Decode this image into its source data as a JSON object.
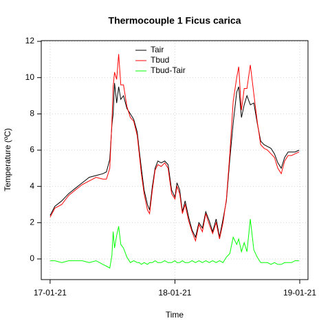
{
  "chart_data": {
    "type": "line",
    "title": "Thermocouple 1 Ficus carica",
    "x_label": "Time",
    "y_label": "Temperature (ºC)",
    "x": [
      0,
      0.038,
      0.093,
      0.148,
      0.203,
      0.258,
      0.313,
      0.368,
      0.423,
      0.451,
      0.478,
      0.495,
      0.505,
      0.516,
      0.533,
      0.549,
      0.566,
      0.588,
      0.615,
      0.643,
      0.67,
      0.698,
      0.714,
      0.731,
      0.753,
      0.78,
      0.797,
      0.819,
      0.841,
      0.863,
      0.89,
      0.918,
      0.945,
      0.973,
      1.0,
      1.016,
      1.038,
      1.06,
      1.082,
      1.11,
      1.137,
      1.165,
      1.192,
      1.22,
      1.247,
      1.275,
      1.302,
      1.33,
      1.357,
      1.385,
      1.412,
      1.44,
      1.467,
      1.495,
      1.511,
      1.533,
      1.555,
      1.577,
      1.604,
      1.632,
      1.659,
      1.687,
      1.714,
      1.742,
      1.769,
      1.797,
      1.824,
      1.852,
      1.879,
      1.907,
      1.934,
      1.962,
      1.995
    ],
    "series": [
      {
        "name": "Tair",
        "color": "#000000",
        "values": [
          2.4,
          2.9,
          3.2,
          3.6,
          3.9,
          4.2,
          4.5,
          4.6,
          4.7,
          4.8,
          5.5,
          7.4,
          8.0,
          9.7,
          8.6,
          9.5,
          8.8,
          9.0,
          8.3,
          8.0,
          7.7,
          7.0,
          6.0,
          5.0,
          3.8,
          3.0,
          2.7,
          4.0,
          5.0,
          5.4,
          5.3,
          5.4,
          5.2,
          3.8,
          3.4,
          4.2,
          3.8,
          2.6,
          3.2,
          2.3,
          1.6,
          1.2,
          2.0,
          1.7,
          2.6,
          2.1,
          1.5,
          2.2,
          1.2,
          2.2,
          3.2,
          5.5,
          7.5,
          9.2,
          9.5,
          7.8,
          8.5,
          9.0,
          8.5,
          8.6,
          7.5,
          6.5,
          6.3,
          6.2,
          6.1,
          5.8,
          5.3,
          5.0,
          5.6,
          5.9,
          5.9,
          5.9,
          6.0
        ]
      },
      {
        "name": "Tbud",
        "color": "#ff0000",
        "values": [
          2.3,
          2.8,
          3.0,
          3.5,
          3.8,
          4.1,
          4.3,
          4.5,
          4.4,
          4.4,
          5.0,
          7.6,
          9.5,
          10.3,
          9.9,
          11.3,
          9.6,
          9.6,
          8.4,
          7.8,
          7.6,
          6.8,
          5.8,
          4.7,
          3.6,
          2.7,
          2.5,
          3.8,
          4.9,
          5.2,
          5.1,
          5.3,
          5.0,
          3.6,
          3.3,
          4.0,
          3.6,
          2.5,
          3.0,
          2.1,
          1.5,
          1.0,
          1.9,
          1.5,
          2.5,
          1.9,
          1.4,
          2.0,
          1.1,
          2.0,
          3.3,
          5.8,
          8.7,
          10.0,
          10.6,
          8.2,
          9.4,
          9.4,
          10.7,
          9.1,
          7.6,
          6.3,
          6.1,
          6.0,
          5.8,
          5.6,
          5.0,
          4.7,
          5.4,
          5.7,
          5.7,
          5.8,
          5.9
        ]
      },
      {
        "name": "Tbud-Tair",
        "color": "#00ff00",
        "values": [
          -0.1,
          -0.1,
          -0.2,
          -0.1,
          -0.1,
          -0.1,
          -0.2,
          -0.1,
          -0.3,
          -0.4,
          -0.5,
          0.2,
          1.5,
          0.6,
          1.3,
          1.8,
          0.8,
          0.6,
          0.1,
          -0.2,
          -0.1,
          -0.2,
          -0.2,
          -0.3,
          -0.2,
          -0.3,
          -0.2,
          -0.2,
          -0.1,
          -0.2,
          -0.2,
          -0.1,
          -0.2,
          -0.2,
          -0.1,
          -0.2,
          -0.2,
          -0.1,
          -0.2,
          -0.2,
          -0.1,
          -0.2,
          -0.1,
          -0.2,
          -0.1,
          -0.2,
          -0.1,
          -0.2,
          -0.1,
          -0.2,
          0.1,
          0.3,
          1.2,
          0.8,
          1.1,
          0.4,
          0.9,
          0.4,
          2.2,
          0.5,
          0.1,
          -0.2,
          -0.2,
          -0.2,
          -0.3,
          -0.2,
          -0.3,
          -0.3,
          -0.2,
          -0.2,
          -0.2,
          -0.1,
          -0.1
        ]
      }
    ],
    "xlim": [
      -0.071,
      2.066
    ],
    "xticks": [
      {
        "value": 0,
        "label": "17-01-21"
      },
      {
        "value": 1,
        "label": "18-01-21"
      },
      {
        "value": 2,
        "label": "19-01-21"
      }
    ],
    "ylim": [
      -1.14,
      12.04
    ],
    "yticks": [
      0,
      2,
      4,
      6,
      8,
      10,
      12
    ],
    "grid": true,
    "legend": "top"
  }
}
